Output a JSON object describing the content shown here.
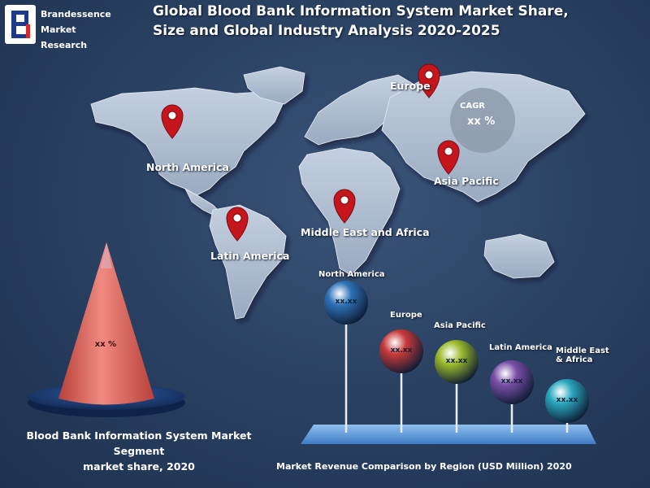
{
  "brand": {
    "line1": "Brandessence",
    "line2": "Market",
    "line3": "Research"
  },
  "header": {
    "title_line1": "Global Blood Bank Information System Market Share,",
    "title_line2": "Size and Global Industry Analysis 2020-2025"
  },
  "map": {
    "regions": [
      {
        "name": "North America"
      },
      {
        "name": "Europe"
      },
      {
        "name": "Asia Pacific"
      },
      {
        "name": "Middle East and Africa"
      },
      {
        "name": "Latin America"
      }
    ],
    "cagr_label": "CAGR",
    "cagr_value": "xx %"
  },
  "segment_share": {
    "value_label": "xx %",
    "caption_line1": "Blood Bank Information System   Market Segment",
    "caption_line2": "market share, 2020"
  },
  "revenue_comparison": {
    "caption": "Market Revenue Comparison by Region (USD Million) 2020",
    "balls": [
      {
        "region_line1": "North America",
        "region_line2": "",
        "value": "xx.xx",
        "color": "#2f73b8"
      },
      {
        "region_line1": "Europe",
        "region_line2": "",
        "value": "xx.xx",
        "color": "#c93a3a"
      },
      {
        "region_line1": "Asia Pacific",
        "region_line2": "",
        "value": "xx.xx",
        "color": "#9bbb2c"
      },
      {
        "region_line1": "Latin America",
        "region_line2": "",
        "value": "xx.xx",
        "color": "#7a4fa8"
      },
      {
        "region_line1": "Middle East",
        "region_line2": "& Africa",
        "value": "xx.xx",
        "color": "#2aa8bf"
      }
    ]
  },
  "colors": {
    "pin": "#c4161c",
    "cone": "#e8665e",
    "cone_base": "#1d3d74",
    "platform": "#4f8fd6"
  }
}
